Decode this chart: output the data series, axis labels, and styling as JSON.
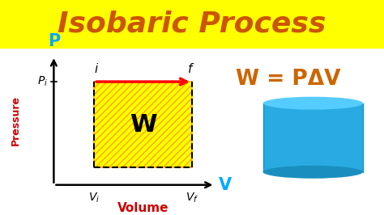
{
  "title": "Isobaric Process",
  "title_color": "#CC5500",
  "title_bg": "#FFFF00",
  "bg_color": "#FFFFFF",
  "formula": "W = PΔV",
  "formula_color": "#CC6600",
  "pressure_label": "Pressure",
  "pressure_label_color": "#CC0000",
  "volume_label": "Volume",
  "volume_label_color": "#CC0000",
  "P_axis_color": "#00AAFF",
  "V_axis_color": "#00AAFF",
  "axis_line_color": "#000000",
  "rect_fill": "#FFFF00",
  "rect_hatch": "////",
  "W_label_color": "#000000",
  "arrow_color": "#FF0000",
  "cylinder_body_color": "#29ABE2",
  "cylinder_dark_color": "#1A8FBF",
  "cylinder_top_color": "#55CCFF",
  "figsize": [
    4.74,
    2.66
  ],
  "dpi": 100
}
